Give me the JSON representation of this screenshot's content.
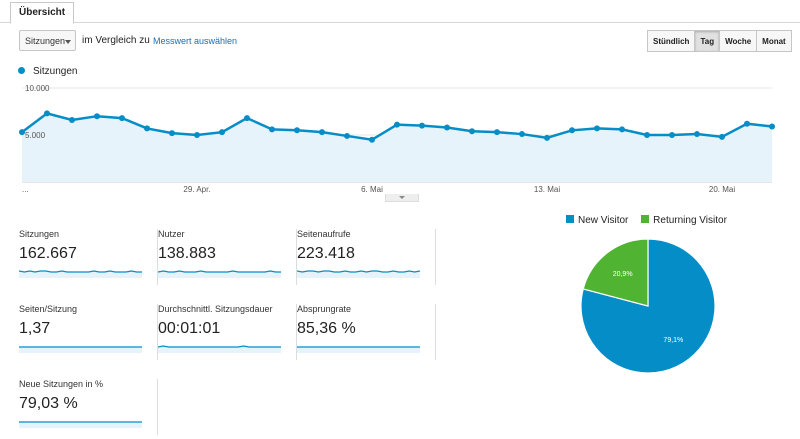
{
  "tabs": [
    "Übersicht"
  ],
  "toolbar": {
    "metric_select": "Sitzungen",
    "compare_label": "im Vergleich zu",
    "metric_link": "Messwert auswählen",
    "granularity": [
      "Stündlich",
      "Tag",
      "Woche",
      "Monat"
    ],
    "granularity_active": "Tag"
  },
  "colors": {
    "series": "#058dc7",
    "fill": "#e6f3fa",
    "new_visitor": "#058dc7",
    "returning_visitor": "#50b432"
  },
  "chart_data": [
    {
      "type": "area",
      "series": [
        {
          "name": "Sitzungen",
          "values": [
            5300,
            7300,
            6600,
            7000,
            6800,
            5700,
            5200,
            5000,
            5300,
            6800,
            5600,
            5500,
            5300,
            4900,
            4500,
            6100,
            6000,
            5800,
            5400,
            5300,
            5100,
            4700,
            5500,
            5700,
            5600,
            5000,
            5000,
            5100,
            4800,
            6200,
            5900
          ]
        }
      ],
      "ytick_labels": [
        "10.000",
        "5.000"
      ],
      "ylim": [
        0,
        10000
      ],
      "xtick_labels": [
        "...",
        "29. Apr.",
        "6. Mai",
        "13. Mai",
        "20. Mai"
      ],
      "xtick_index": [
        0,
        7,
        14,
        21,
        28
      ],
      "grid": true
    },
    {
      "type": "pie",
      "categories": [
        "New Visitor",
        "Returning Visitor"
      ],
      "values": [
        79.1,
        20.9
      ],
      "labels": [
        "79,1%",
        "20,9%"
      ],
      "legend": "top"
    }
  ],
  "scorecards": [
    {
      "label": "Sitzungen",
      "value": "162.667",
      "spark": [
        6,
        5,
        6,
        5,
        6,
        6,
        5,
        5,
        6,
        5,
        5,
        5,
        5,
        5,
        6,
        5,
        5,
        6,
        5,
        5,
        5,
        6,
        5,
        5
      ]
    },
    {
      "label": "Nutzer",
      "value": "138.883",
      "spark": [
        5,
        6,
        5,
        5,
        6,
        5,
        5,
        5,
        6,
        5,
        5,
        5,
        5,
        5,
        6,
        5,
        5,
        5,
        5,
        5,
        5,
        6,
        5,
        5
      ]
    },
    {
      "label": "Seitenaufrufe",
      "value": "223.418",
      "spark": [
        6,
        5,
        6,
        6,
        5,
        6,
        6,
        5,
        5,
        6,
        5,
        5,
        6,
        5,
        6,
        6,
        5,
        5,
        6,
        5,
        5,
        6,
        5,
        6
      ]
    },
    {
      "label": "Seiten/Sitzung",
      "value": "1,37",
      "spark": [
        5,
        5,
        5,
        5,
        5,
        5,
        5,
        5,
        5,
        5,
        5,
        5,
        5,
        5,
        5,
        5,
        5,
        5,
        5,
        5,
        5,
        5,
        5,
        5
      ]
    },
    {
      "label": "Durchschnittl. Sitzungsdauer",
      "value": "00:01:01",
      "spark": [
        5,
        6,
        5,
        5,
        5,
        5,
        5,
        5,
        5,
        5,
        5,
        5,
        5,
        5,
        5,
        5,
        6,
        5,
        5,
        5,
        5,
        5,
        5,
        5
      ]
    },
    {
      "label": "Absprungrate",
      "value": "85,36 %",
      "spark": [
        5,
        5,
        5,
        5,
        5,
        5,
        5,
        5,
        5,
        5,
        5,
        5,
        5,
        5,
        5,
        5,
        5,
        5,
        5,
        5,
        5,
        5,
        5,
        5
      ]
    },
    {
      "label": "Neue Sitzungen in %",
      "value": "79,03 %",
      "spark": [
        5,
        5,
        5,
        5,
        5,
        5,
        5,
        5,
        5,
        5,
        5,
        5,
        5,
        5,
        5,
        5,
        5,
        5,
        5,
        5,
        5,
        5,
        5,
        5
      ]
    }
  ]
}
